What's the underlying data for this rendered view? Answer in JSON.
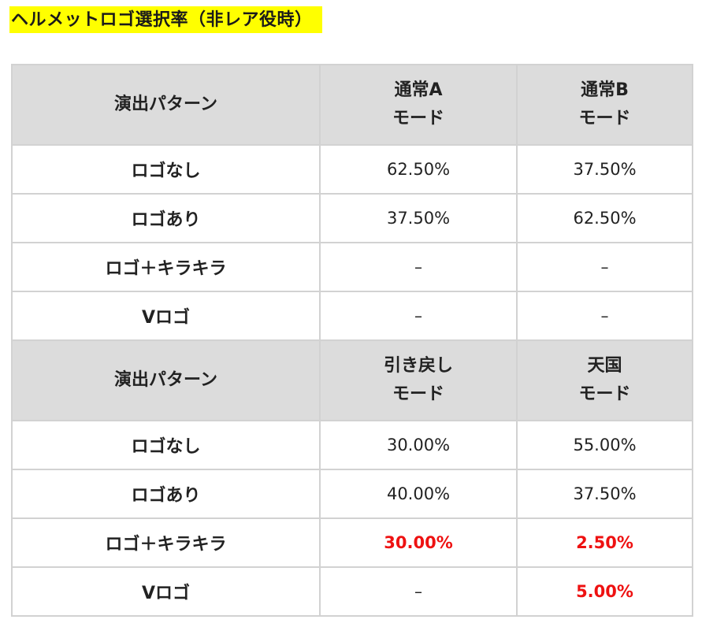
{
  "title": "ヘルメットロゴ選択率（非レア役時）",
  "highlight_color": "#ffff00",
  "emphasis_color": "#ee1111",
  "sections": [
    {
      "header": {
        "pattern": "演出パターン",
        "col2": [
          "通常A",
          "モード"
        ],
        "col3": [
          "通常B",
          "モード"
        ]
      },
      "rows": [
        {
          "label": "ロゴなし",
          "v1": "62.50%",
          "v2": "37.50%",
          "v1_emph": false,
          "v2_emph": false
        },
        {
          "label": "ロゴあり",
          "v1": "37.50%",
          "v2": "62.50%",
          "v1_emph": false,
          "v2_emph": false
        },
        {
          "label": "ロゴ＋キラキラ",
          "v1": "–",
          "v2": "–",
          "v1_emph": false,
          "v2_emph": false
        },
        {
          "label": "Vロゴ",
          "v1": "–",
          "v2": "–",
          "v1_emph": false,
          "v2_emph": false
        }
      ]
    },
    {
      "header": {
        "pattern": "演出パターン",
        "col2": [
          "引き戻し",
          "モード"
        ],
        "col3": [
          "天国",
          "モード"
        ]
      },
      "rows": [
        {
          "label": "ロゴなし",
          "v1": "30.00%",
          "v2": "55.00%",
          "v1_emph": false,
          "v2_emph": false
        },
        {
          "label": "ロゴあり",
          "v1": "40.00%",
          "v2": "37.50%",
          "v1_emph": false,
          "v2_emph": false
        },
        {
          "label": "ロゴ＋キラキラ",
          "v1": "30.00%",
          "v2": "2.50%",
          "v1_emph": true,
          "v2_emph": true
        },
        {
          "label": "Vロゴ",
          "v1": "–",
          "v2": "5.00%",
          "v1_emph": false,
          "v2_emph": true
        }
      ]
    }
  ]
}
